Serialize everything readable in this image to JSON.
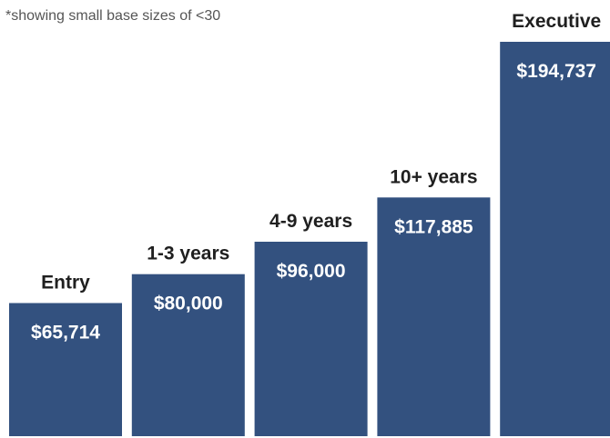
{
  "note": "*showing small base sizes of <30",
  "chart_data": {
    "type": "bar",
    "categories": [
      "Entry",
      "1-3 years",
      "4-9 years",
      "10+ years",
      "Executive"
    ],
    "values": [
      65714,
      80000,
      96000,
      117885,
      194737
    ],
    "value_labels": [
      "$65,714",
      "$80,000",
      "$96,000",
      "$117,885",
      "$194,737"
    ],
    "bar_color": "#33517f",
    "title": "",
    "xlabel": "",
    "ylabel": ""
  }
}
